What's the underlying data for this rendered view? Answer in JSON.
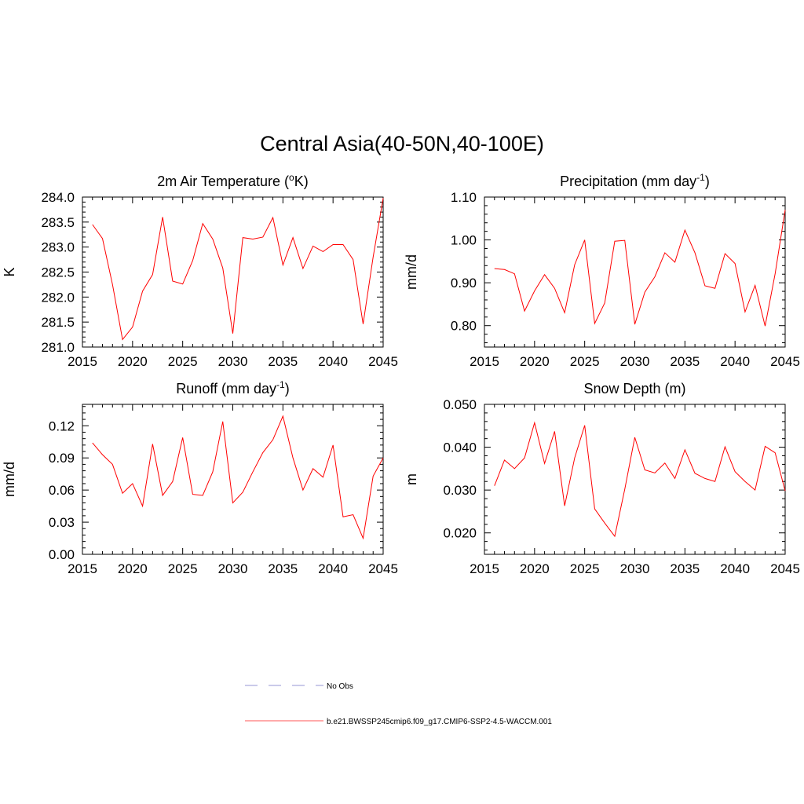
{
  "title": "Central Asia(40-50N,40-100E)",
  "chart_data": [
    {
      "type": "line",
      "title": "2m Air Temperature (",
      "title_super": "o",
      "title_tail": "K)",
      "xlabel": "",
      "ylabel": "K",
      "xlim": [
        2015,
        2045
      ],
      "ylim": [
        281.0,
        284.0
      ],
      "x_ticks": [
        "2015",
        "2020",
        "2025",
        "2030",
        "2035",
        "2040",
        "2045"
      ],
      "y_ticks": [
        "281.0",
        "281.5",
        "282.0",
        "282.5",
        "283.0",
        "283.5",
        "284.0"
      ],
      "series": [
        {
          "name": "b.e21.BWSSP245cmip6.f09_g17.CMIP6-SSP2-4.5-WACCM.001",
          "color": "#ff0000",
          "x": [
            2016,
            2017,
            2018,
            2019,
            2020,
            2021,
            2022,
            2023,
            2024,
            2025,
            2026,
            2027,
            2028,
            2029,
            2030,
            2031,
            2032,
            2033,
            2034,
            2035,
            2036,
            2037,
            2038,
            2039,
            2040,
            2041,
            2042,
            2043,
            2044,
            2045
          ],
          "values": [
            283.45,
            283.17,
            282.25,
            281.15,
            281.4,
            282.12,
            282.45,
            283.6,
            282.32,
            282.26,
            282.73,
            283.47,
            283.16,
            282.58,
            281.27,
            283.19,
            283.16,
            283.2,
            283.59,
            282.64,
            283.19,
            282.57,
            283.02,
            282.91,
            283.05,
            283.05,
            282.75,
            281.46,
            282.8,
            283.98
          ]
        }
      ]
    },
    {
      "type": "line",
      "title": "Precipitation (mm day",
      "title_super": "-1",
      "title_tail": ")",
      "xlabel": "",
      "ylabel": "mm/d",
      "xlim": [
        2015,
        2045
      ],
      "ylim": [
        0.75,
        1.1
      ],
      "x_ticks": [
        "2015",
        "2020",
        "2025",
        "2030",
        "2035",
        "2040",
        "2045"
      ],
      "y_ticks": [
        "0.80",
        "0.90",
        "1.00",
        "1.10"
      ],
      "series": [
        {
          "name": "b.e21.BWSSP245cmip6.f09_g17.CMIP6-SSP2-4.5-WACCM.001",
          "color": "#ff0000",
          "x": [
            2016,
            2017,
            2018,
            2019,
            2020,
            2021,
            2022,
            2023,
            2024,
            2025,
            2026,
            2027,
            2028,
            2029,
            2030,
            2031,
            2032,
            2033,
            2034,
            2035,
            2036,
            2037,
            2038,
            2039,
            2040,
            2041,
            2042,
            2043,
            2044,
            2045
          ],
          "values": [
            0.933,
            0.931,
            0.921,
            0.834,
            0.881,
            0.919,
            0.887,
            0.83,
            0.942,
            1.0,
            0.805,
            0.853,
            0.997,
            0.999,
            0.803,
            0.878,
            0.914,
            0.97,
            0.948,
            1.023,
            0.97,
            0.893,
            0.887,
            0.968,
            0.945,
            0.832,
            0.894,
            0.799,
            0.921,
            1.07
          ]
        }
      ]
    },
    {
      "type": "line",
      "title": "Runoff (mm day",
      "title_super": "-1",
      "title_tail": ")",
      "xlabel": "",
      "ylabel": "mm/d",
      "xlim": [
        2015,
        2045
      ],
      "ylim": [
        0.0,
        0.14
      ],
      "x_ticks": [
        "2015",
        "2020",
        "2025",
        "2030",
        "2035",
        "2040",
        "2045"
      ],
      "y_ticks": [
        "0.00",
        "0.03",
        "0.06",
        "0.09",
        "0.12"
      ],
      "series": [
        {
          "name": "b.e21.BWSSP245cmip6.f09_g17.CMIP6-SSP2-4.5-WACCM.001",
          "color": "#ff0000",
          "x": [
            2016,
            2017,
            2018,
            2019,
            2020,
            2021,
            2022,
            2023,
            2024,
            2025,
            2026,
            2027,
            2028,
            2029,
            2030,
            2031,
            2032,
            2033,
            2034,
            2035,
            2036,
            2037,
            2038,
            2039,
            2040,
            2041,
            2042,
            2043,
            2044,
            2045
          ],
          "values": [
            0.104,
            0.093,
            0.084,
            0.057,
            0.066,
            0.045,
            0.103,
            0.055,
            0.068,
            0.109,
            0.056,
            0.055,
            0.077,
            0.124,
            0.048,
            0.058,
            0.077,
            0.095,
            0.107,
            0.129,
            0.09,
            0.06,
            0.08,
            0.072,
            0.102,
            0.035,
            0.037,
            0.015,
            0.073,
            0.09
          ]
        }
      ]
    },
    {
      "type": "line",
      "title": "Snow Depth (m)",
      "title_super": "",
      "title_tail": "",
      "xlabel": "",
      "ylabel": "m",
      "xlim": [
        2015,
        2045
      ],
      "ylim": [
        0.015,
        0.05
      ],
      "x_ticks": [
        "2015",
        "2020",
        "2025",
        "2030",
        "2035",
        "2040",
        "2045"
      ],
      "y_ticks": [
        "0.020",
        "0.030",
        "0.040",
        "0.050"
      ],
      "series": [
        {
          "name": "b.e21.BWSSP245cmip6.f09_g17.CMIP6-SSP2-4.5-WACCM.001",
          "color": "#ff0000",
          "x": [
            2016,
            2017,
            2018,
            2019,
            2020,
            2021,
            2022,
            2023,
            2024,
            2025,
            2026,
            2027,
            2028,
            2029,
            2030,
            2031,
            2032,
            2033,
            2034,
            2035,
            2036,
            2037,
            2038,
            2039,
            2040,
            2041,
            2042,
            2043,
            2044,
            2045
          ],
          "values": [
            0.031,
            0.037,
            0.035,
            0.0375,
            0.0457,
            0.0362,
            0.0437,
            0.0263,
            0.0375,
            0.0451,
            0.0256,
            0.0223,
            0.0192,
            0.0302,
            0.0423,
            0.0347,
            0.034,
            0.0363,
            0.0327,
            0.0394,
            0.0339,
            0.0327,
            0.032,
            0.0401,
            0.0343,
            0.032,
            0.03,
            0.0402,
            0.0387,
            0.0298
          ]
        }
      ]
    }
  ],
  "legend": {
    "items": [
      {
        "label": "No Obs",
        "color": "#aaaadd",
        "style": "dashed"
      },
      {
        "label": "b.e21.BWSSP245cmip6.f09_g17.CMIP6-SSP2-4.5-WACCM.001",
        "color": "#ff7777",
        "style": "solid"
      }
    ]
  }
}
